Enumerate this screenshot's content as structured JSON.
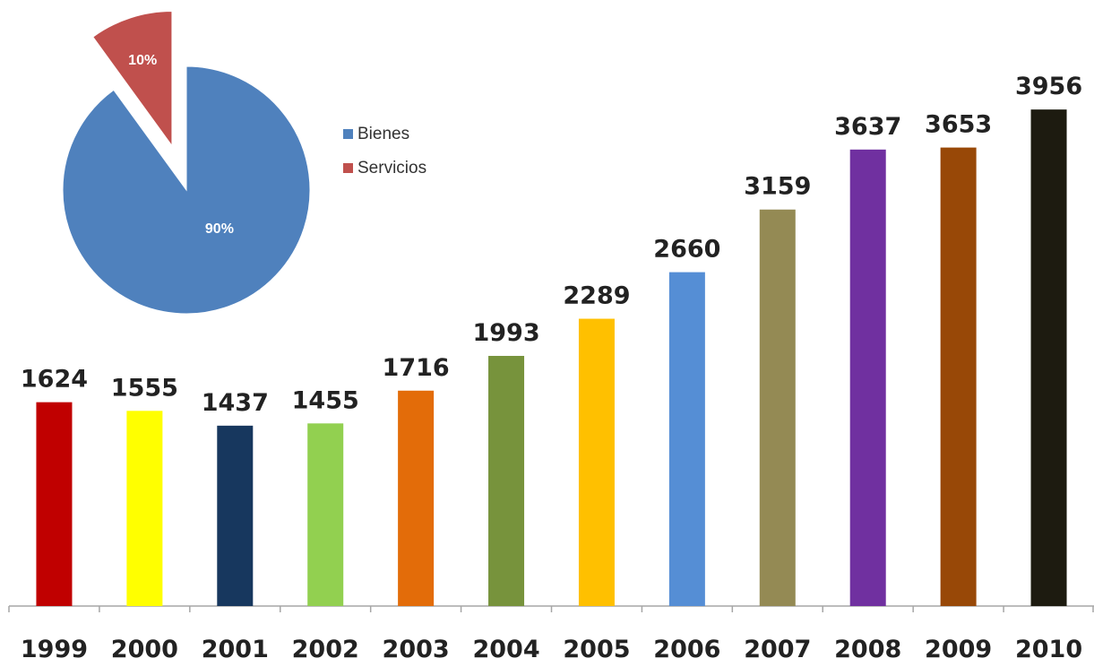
{
  "chart_data": [
    {
      "type": "bar",
      "categories": [
        "1999",
        "2000",
        "2001",
        "2002",
        "2003",
        "2004",
        "2005",
        "2006",
        "2007",
        "2008",
        "2009",
        "2010"
      ],
      "values": [
        1624,
        1555,
        1437,
        1455,
        1716,
        1993,
        2289,
        2660,
        3159,
        3637,
        3653,
        3956
      ],
      "value_labels": [
        "1624",
        "1555",
        "1437",
        "1455",
        "1716",
        "1993",
        "2289",
        "2660",
        "3159",
        "3637",
        "3653",
        "3956"
      ],
      "colors": [
        "#c00000",
        "#ffff00",
        "#17375e",
        "#92d050",
        "#e36c09",
        "#77933c",
        "#ffc000",
        "#558ed5",
        "#948a54",
        "#7030a0",
        "#984807",
        "#1d1b10"
      ],
      "ylim": [
        0,
        4000
      ],
      "grid": false,
      "title": "",
      "xlabel": "",
      "ylabel": ""
    },
    {
      "type": "pie",
      "slices": [
        {
          "label": "Bienes",
          "value": 90,
          "text": "90%",
          "color": "#4f81bd"
        },
        {
          "label": "Servicios",
          "value": 10,
          "text": "10%",
          "color": "#c0504d",
          "exploded": true
        }
      ],
      "legend": [
        "Bienes",
        "Servicios"
      ],
      "legend_position": "right"
    }
  ]
}
